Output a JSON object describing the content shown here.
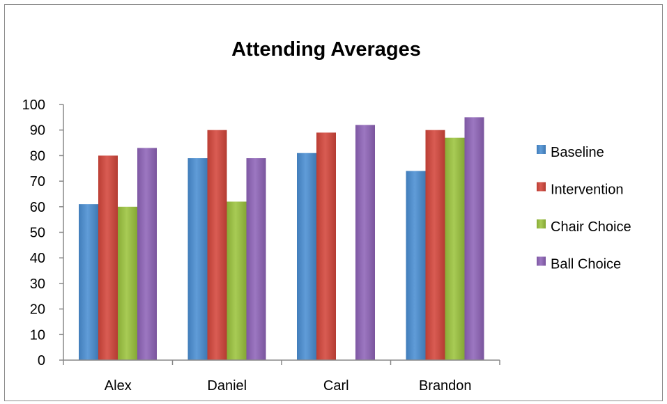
{
  "chart_data": {
    "type": "bar",
    "title": "Attending Averages",
    "xlabel": "",
    "ylabel": "",
    "categories": [
      "Alex",
      "Daniel",
      "Carl",
      "Brandon"
    ],
    "series": [
      {
        "name": "Baseline",
        "color": "#4a8ed3",
        "values": [
          61,
          79,
          81,
          74
        ]
      },
      {
        "name": "Intervention",
        "color": "#d4463b",
        "values": [
          80,
          90,
          89,
          90
        ]
      },
      {
        "name": "Chair Choice",
        "color": "#9cc43e",
        "values": [
          60,
          62,
          0,
          87
        ]
      },
      {
        "name": "Ball Choice",
        "color": "#8f64b9",
        "values": [
          83,
          79,
          92,
          95
        ]
      }
    ],
    "ylim": [
      0,
      100
    ],
    "yticks": [
      0,
      10,
      20,
      30,
      40,
      50,
      60,
      70,
      80,
      90,
      100
    ],
    "grid": false,
    "legend_position": "right"
  }
}
